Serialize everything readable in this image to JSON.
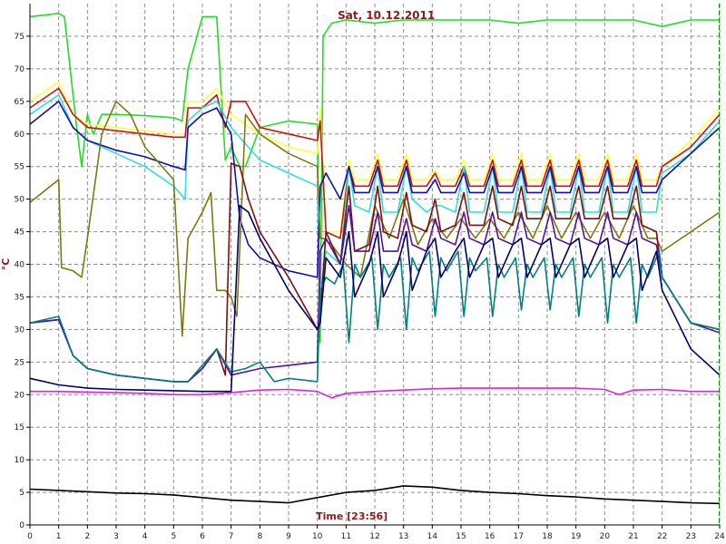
{
  "chart_data": {
    "type": "line",
    "title": "Sat, 10.12.2011",
    "xlabel": "Time [23:56]",
    "ylabel": "°C",
    "xlim": [
      0,
      24
    ],
    "ylim": [
      0,
      80
    ],
    "xticks": [
      "0",
      "1",
      "2",
      "3",
      "4",
      "5",
      "6",
      "7",
      "8",
      "9",
      "10",
      "11",
      "12",
      "13",
      "14",
      "15",
      "16",
      "17",
      "18",
      "19",
      "20",
      "21",
      "22",
      "23",
      "24"
    ],
    "yticks": [
      "0",
      "5",
      "10",
      "15",
      "20",
      "25",
      "30",
      "35",
      "40",
      "45",
      "50",
      "55",
      "60",
      "65",
      "70",
      "75"
    ],
    "grid": true,
    "cursor_x": 24,
    "series": [
      {
        "color": "#22dd22",
        "x": [
          0,
          1,
          1.2,
          1.5,
          1.6,
          1.8,
          2,
          2.2,
          2.5,
          3,
          4,
          5,
          5.3,
          5.5,
          6,
          6.5,
          6.8,
          7,
          7.3,
          7.5,
          8,
          9,
          10,
          10.1,
          10.2,
          10.5,
          11,
          12,
          13,
          14,
          15,
          16,
          17,
          18,
          19,
          20,
          21,
          21.5,
          22,
          23,
          24
        ],
        "values": [
          78,
          78.5,
          78,
          66,
          62,
          55,
          63,
          60,
          63,
          63,
          62.8,
          62.5,
          62,
          70,
          78,
          78,
          56,
          58,
          55,
          55,
          61,
          62,
          61.5,
          28,
          75,
          77,
          77.5,
          77,
          77.5,
          77.5,
          77.5,
          77.5,
          77,
          77.5,
          77.5,
          77.5,
          77.5,
          77,
          76.5,
          77.5,
          77.5
        ]
      },
      {
        "color": "#ffff44",
        "x": [
          0,
          1,
          1.5,
          2,
          3,
          4,
          5,
          5.4,
          5.5,
          6,
          6.5,
          7,
          8,
          9,
          10,
          10.1,
          10.3,
          10.8,
          11.1,
          11.3,
          11.8,
          12.1,
          12.3,
          12.8,
          13.1,
          13.3,
          13.8,
          14.1,
          14.3,
          14.8,
          15.1,
          15.3,
          15.8,
          16.1,
          16.3,
          16.8,
          17.1,
          17.3,
          17.8,
          18.1,
          18.3,
          18.8,
          19.1,
          19.3,
          19.8,
          20.1,
          20.3,
          20.8,
          21.1,
          21.3,
          21.8,
          22,
          23,
          24
        ],
        "values": [
          65,
          68,
          63,
          61.5,
          61,
          60.5,
          60,
          60,
          65,
          65,
          67,
          63,
          60,
          58,
          57,
          64,
          45,
          45,
          56,
          53,
          53,
          57,
          53,
          53,
          57,
          53,
          53,
          54.5,
          53,
          53,
          56,
          53,
          53,
          57,
          53,
          53,
          57,
          53,
          53,
          57,
          53,
          53,
          57,
          53,
          53,
          57,
          53,
          53,
          57,
          53,
          53,
          55,
          59,
          64
        ]
      },
      {
        "color": "#cc1111",
        "x": [
          0,
          1,
          1.5,
          2,
          3,
          4,
          5,
          5.4,
          5.5,
          6,
          6.5,
          6.8,
          7,
          7.5,
          8,
          9,
          10,
          10.1,
          10.3,
          10.8,
          11.1,
          11.3,
          11.8,
          12.1,
          12.3,
          12.8,
          13.1,
          13.3,
          13.8,
          14.1,
          14.3,
          14.8,
          15.1,
          15.3,
          15.8,
          16.1,
          16.3,
          16.8,
          17.1,
          17.3,
          17.8,
          18.1,
          18.3,
          18.8,
          19.1,
          19.3,
          19.8,
          20.1,
          20.3,
          20.8,
          21.1,
          21.3,
          21.8,
          22,
          23,
          24
        ],
        "values": [
          64,
          67,
          63,
          61,
          60.5,
          60,
          59.5,
          59.5,
          64,
          64,
          66,
          61,
          65,
          65,
          61,
          60,
          59,
          62,
          45,
          44,
          55,
          52,
          52,
          56,
          52,
          52,
          56,
          52,
          52,
          54,
          52,
          52,
          55,
          52,
          52,
          56,
          52,
          52,
          56,
          52,
          52,
          56,
          52,
          52,
          56,
          52,
          52,
          56,
          52,
          52,
          56,
          52,
          52,
          55,
          58,
          63
        ]
      },
      {
        "color": "#33dddd",
        "x": [
          0,
          1,
          1.5,
          2,
          3,
          4,
          5,
          5.4,
          5.5,
          6,
          6.5,
          7,
          8,
          9,
          10,
          10.1,
          10.3,
          10.8,
          11.1,
          11.3,
          11.8,
          12.1,
          12.3,
          12.8,
          13.1,
          13.3,
          13.8,
          14.1,
          14.3,
          14.8,
          15.1,
          15.3,
          15.8,
          16.1,
          16.3,
          16.8,
          17.1,
          17.3,
          17.8,
          18.1,
          18.3,
          18.8,
          19.1,
          19.3,
          19.8,
          20.1,
          20.3,
          20.8,
          21.1,
          21.3,
          21.8,
          22,
          23,
          24
        ],
        "values": [
          63,
          66,
          61,
          59,
          57,
          55,
          52,
          50,
          62,
          64,
          65,
          61,
          56,
          54,
          52,
          35,
          42,
          40,
          55,
          49,
          48,
          55,
          48,
          48,
          55,
          50,
          48,
          49,
          49,
          48,
          55,
          48,
          48,
          55,
          48,
          48,
          55,
          48,
          48,
          55,
          48,
          48,
          55,
          48,
          48,
          55,
          48,
          48,
          55,
          48,
          48,
          54,
          57,
          62
        ]
      },
      {
        "color": "#1111aa",
        "x": [
          0,
          1,
          1.5,
          2,
          3,
          4,
          5,
          5.4,
          5.5,
          6,
          6.5,
          7,
          7.3,
          7.6,
          8,
          9,
          10,
          10.1,
          10.3,
          10.8,
          11.1,
          11.3,
          11.8,
          12.1,
          12.3,
          12.8,
          13.1,
          13.3,
          13.8,
          14.1,
          14.3,
          14.8,
          15.1,
          15.3,
          15.8,
          16.1,
          16.3,
          16.8,
          17.1,
          17.3,
          17.8,
          18.1,
          18.3,
          18.8,
          19.1,
          19.3,
          19.8,
          20.1,
          20.3,
          20.8,
          21.1,
          21.3,
          21.8,
          22,
          23,
          24
        ],
        "values": [
          61.5,
          65,
          61,
          59,
          57.5,
          56.5,
          55,
          54.5,
          61,
          63,
          64,
          60,
          47,
          43,
          41,
          39,
          38,
          52,
          54,
          50,
          55,
          51,
          51,
          55,
          51,
          51,
          55,
          51,
          51,
          53,
          51,
          51,
          54,
          51,
          51,
          55,
          51,
          51,
          55,
          51,
          51,
          55,
          51,
          51,
          55,
          51,
          51,
          55,
          51,
          51,
          55,
          51,
          51,
          53,
          57,
          61
        ]
      },
      {
        "color": "#7a7a10",
        "x": [
          0,
          1,
          1.1,
          1.5,
          1.8,
          2,
          2.5,
          3,
          3.5,
          4,
          5,
          5.3,
          5.5,
          6,
          6.3,
          6.5,
          6.8,
          7,
          7.2,
          7.5,
          8,
          9,
          10,
          10.1,
          10.2,
          10.5,
          11,
          11.5,
          12,
          12.5,
          13,
          13.5,
          14,
          14.5,
          15,
          15.5,
          16,
          16.5,
          17,
          17.5,
          18,
          18.5,
          19,
          19.5,
          20,
          20.5,
          21,
          21.5,
          21.8,
          22,
          23,
          24
        ],
        "values": [
          49.5,
          53,
          39.5,
          39,
          38,
          44,
          60,
          65,
          63,
          58,
          53,
          29,
          44,
          48,
          51,
          36,
          36,
          35,
          32,
          63,
          60,
          57,
          55,
          44,
          44,
          43,
          40,
          38,
          49,
          44,
          50,
          43,
          47,
          44,
          47,
          44,
          47,
          44,
          48,
          44,
          49,
          44,
          48,
          44,
          48,
          44,
          49,
          44,
          44,
          42,
          45,
          48
        ]
      },
      {
        "color": "#7a1010",
        "x": [
          0,
          1,
          1.5,
          2,
          3,
          4,
          5,
          5.5,
          6,
          6.5,
          6.8,
          7,
          7.3,
          7.6,
          8,
          9,
          10,
          10.1,
          10.3,
          10.8,
          11.1,
          11.3,
          11.8,
          12.1,
          12.3,
          12.8,
          13.1,
          13.3,
          13.8,
          14.1,
          14.3,
          14.8,
          15.1,
          15.3,
          15.8,
          16.1,
          16.3,
          16.8,
          17.1,
          17.3,
          17.8,
          18.1,
          18.3,
          18.8,
          19.1,
          19.3,
          19.8,
          20.1,
          20.3,
          20.8,
          21.1,
          21.3,
          21.8,
          22,
          23,
          24
        ],
        "values": [
          31,
          31.5,
          26,
          24,
          23,
          22.5,
          22,
          22,
          24,
          27,
          23,
          55.5,
          55,
          50,
          45,
          38,
          30,
          32,
          45,
          40,
          52,
          42,
          43,
          52,
          45,
          44,
          51,
          46,
          45,
          50,
          45,
          46,
          51,
          46,
          46,
          52,
          47,
          46,
          52,
          47,
          47,
          52,
          47,
          47,
          52,
          47,
          47,
          52,
          47,
          47,
          52,
          46,
          45,
          38,
          31,
          30
        ]
      },
      {
        "color": "#551199",
        "x": [
          0,
          1,
          1.5,
          2,
          3,
          4,
          5,
          5.5,
          6,
          6.5,
          7,
          7.5,
          8,
          9,
          10,
          10.1,
          10.3,
          10.8,
          11.1,
          11.3,
          11.8,
          12.1,
          12.3,
          12.8,
          13.1,
          13.3,
          13.8,
          14.1,
          14.3,
          14.8,
          15.1,
          15.3,
          15.8,
          16.1,
          16.3,
          16.8,
          17.1,
          17.3,
          17.8,
          18.1,
          18.3,
          18.8,
          19.1,
          19.3,
          19.8,
          20.1,
          20.3,
          20.8,
          21.1,
          21.3,
          21.8,
          22,
          23,
          24
        ],
        "values": [
          31,
          31.5,
          26,
          24,
          23,
          22.5,
          22,
          22,
          24,
          27,
          23,
          23.5,
          24,
          24.5,
          25,
          42,
          44,
          40,
          49,
          42,
          42,
          48,
          42,
          42,
          47,
          43,
          42,
          47,
          44,
          43,
          48,
          44,
          43,
          48,
          44,
          43,
          48,
          44,
          43,
          48,
          44,
          43,
          48,
          44,
          43,
          48,
          44,
          43,
          48,
          44,
          43,
          38,
          31,
          29.5
        ]
      },
      {
        "color": "#008080",
        "x": [
          0,
          1,
          1.5,
          2,
          3,
          4,
          5,
          5.5,
          6,
          6.5,
          7,
          7.5,
          8,
          8.5,
          9,
          10,
          10.1,
          10.3,
          10.6,
          10.9,
          11.1,
          11.3,
          11.5,
          11.9,
          12.1,
          12.3,
          12.5,
          12.9,
          13.1,
          13.3,
          13.5,
          13.9,
          14.1,
          14.3,
          14.5,
          14.9,
          15.1,
          15.3,
          15.5,
          15.9,
          16.1,
          16.3,
          16.5,
          16.9,
          17.1,
          17.3,
          17.5,
          17.9,
          18.1,
          18.3,
          18.5,
          18.9,
          19.1,
          19.3,
          19.5,
          19.9,
          20.1,
          20.3,
          20.5,
          20.9,
          21.1,
          21.3,
          21.5,
          21.9,
          22,
          23,
          24
        ],
        "values": [
          31,
          32,
          26,
          24,
          23,
          22.5,
          22,
          22,
          24.5,
          27,
          23.5,
          24,
          25,
          22,
          22.5,
          22,
          36,
          38,
          37,
          40,
          28,
          40,
          38,
          41,
          30,
          40,
          38,
          41,
          30,
          41,
          39,
          42,
          32,
          41,
          39,
          42,
          32,
          41,
          39,
          41,
          32,
          40,
          38,
          41,
          33,
          40,
          38,
          41,
          33,
          40,
          38,
          41,
          32,
          40,
          38,
          41,
          31,
          40,
          38,
          41,
          31,
          40,
          38,
          42,
          38,
          31,
          30
        ]
      },
      {
        "color": "#000066",
        "x": [
          0,
          1,
          2,
          3,
          4,
          5,
          6,
          7,
          7.3,
          7.6,
          8,
          9,
          10,
          10.1,
          10.3,
          10.8,
          11.1,
          11.3,
          11.8,
          12.1,
          12.3,
          12.8,
          13.1,
          13.3,
          13.8,
          14.1,
          14.3,
          14.8,
          15.1,
          15.3,
          15.8,
          16.1,
          16.3,
          16.8,
          17.1,
          17.3,
          17.8,
          18.1,
          18.3,
          18.8,
          19.1,
          19.3,
          19.8,
          20.1,
          20.3,
          20.8,
          21.1,
          21.3,
          21.8,
          22,
          23,
          24
        ],
        "values": [
          22.5,
          21.5,
          21,
          20.8,
          20.7,
          20.6,
          20.5,
          20.5,
          49,
          48,
          44,
          36,
          30,
          31,
          41,
          38,
          45,
          35,
          40,
          45,
          35,
          40,
          45,
          36,
          42,
          44,
          38,
          42,
          44,
          38,
          43,
          44,
          38,
          43,
          44,
          38,
          43,
          44,
          38,
          43,
          44,
          38,
          43,
          44,
          38,
          43,
          44,
          36,
          42,
          36,
          27,
          23
        ]
      },
      {
        "color": "#dd22dd",
        "x": [
          0,
          1,
          2,
          3,
          4,
          5,
          6,
          7,
          8,
          9,
          10,
          10.5,
          11,
          12,
          13,
          14,
          15,
          16,
          17,
          18,
          19,
          20,
          20.5,
          21,
          22,
          23,
          24
        ],
        "values": [
          20.5,
          20.5,
          20.4,
          20.3,
          20.2,
          20,
          20,
          20.3,
          20.7,
          20.8,
          20.5,
          19.5,
          20.2,
          20.5,
          20.7,
          20.9,
          21,
          21,
          21,
          21,
          21,
          20.8,
          20,
          20.7,
          20.8,
          20.5,
          20.5
        ]
      },
      {
        "color": "#000000",
        "x": [
          0,
          1,
          2,
          3,
          4,
          5,
          6,
          7,
          8,
          9,
          10,
          11,
          12,
          13,
          14,
          15,
          16,
          17,
          18,
          19,
          20,
          21,
          22,
          23,
          24
        ],
        "values": [
          5.5,
          5.3,
          5.1,
          4.9,
          4.8,
          4.6,
          4.2,
          3.8,
          3.6,
          3.4,
          4.2,
          5,
          5.3,
          6,
          5.8,
          5.3,
          5,
          4.8,
          4.5,
          4.3,
          4,
          3.8,
          3.6,
          3.4,
          3.3
        ]
      }
    ]
  }
}
